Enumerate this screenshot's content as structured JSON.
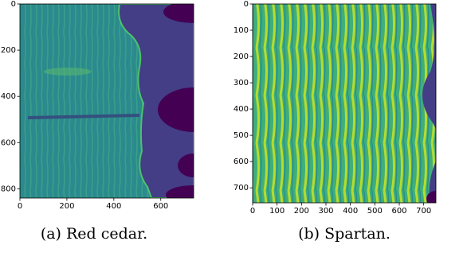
{
  "figures": [
    {
      "caption": "(a) Red cedar.",
      "xlim": [
        0,
        740
      ],
      "ylim": [
        0,
        840
      ],
      "xticks": [
        0,
        200,
        400,
        600
      ],
      "yticks": [
        0,
        200,
        400,
        600,
        800
      ]
    },
    {
      "caption": "(b) Spartan.",
      "xlim": [
        0,
        750
      ],
      "ylim": [
        0,
        757
      ],
      "xticks": [
        0,
        100,
        200,
        300,
        400,
        500,
        600,
        700
      ],
      "yticks": [
        0,
        100,
        200,
        300,
        400,
        500,
        600,
        700
      ]
    }
  ]
}
